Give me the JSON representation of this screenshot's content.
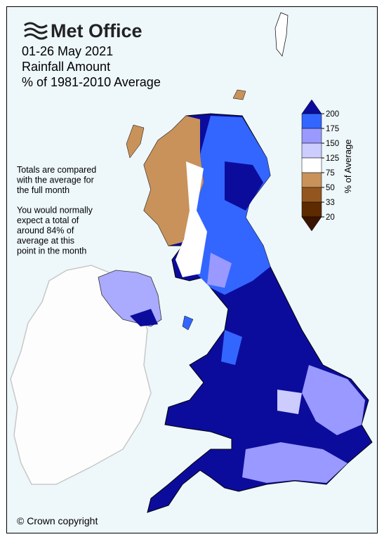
{
  "header": {
    "logo": "Met Office",
    "title_lines": [
      "01-26 May 2021",
      "Rainfall Amount",
      "% of 1981-2010 Average"
    ]
  },
  "notes": [
    [
      "Totals are compared",
      "with the average for",
      "the full month"
    ],
    [
      "You would normally",
      "expect a total of",
      "around 84% of",
      "average at this",
      "point in the month"
    ]
  ],
  "legend": {
    "label": "% of Average",
    "ticks": [
      200,
      175,
      150,
      125,
      75,
      50,
      33,
      20
    ],
    "colors": [
      "#0c0c9c",
      "#3366ff",
      "#9999ff",
      "#ccccff",
      "#ffffff",
      "#c8925a",
      "#94561f",
      "#5e2a00",
      "#3a1400"
    ]
  },
  "footer": "© Crown copyright"
}
